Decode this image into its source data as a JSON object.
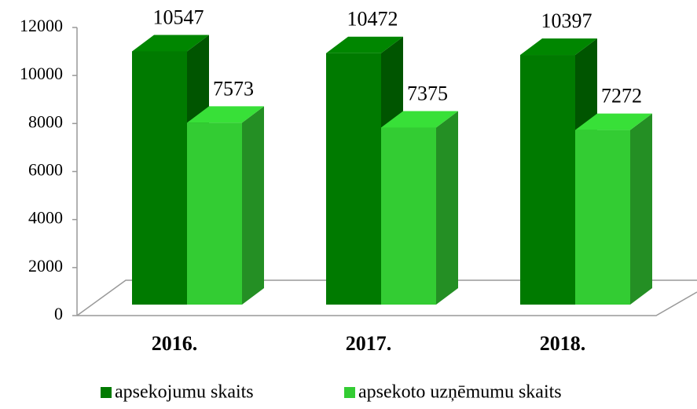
{
  "chart_data": {
    "type": "bar3d",
    "categories": [
      "2016.",
      "2017.",
      "2018."
    ],
    "series": [
      {
        "name": "apsekojumu skaits",
        "color": "#007a00",
        "values": [
          10547,
          10472,
          10397
        ]
      },
      {
        "name": "apsekoto uzņēmumu skaits",
        "color": "#33cc33",
        "values": [
          7573,
          7375,
          7272
        ]
      }
    ],
    "ylim": [
      0,
      12000
    ],
    "yticks": [
      0,
      2000,
      4000,
      6000,
      8000,
      10000,
      12000
    ],
    "legend": "bottom"
  }
}
